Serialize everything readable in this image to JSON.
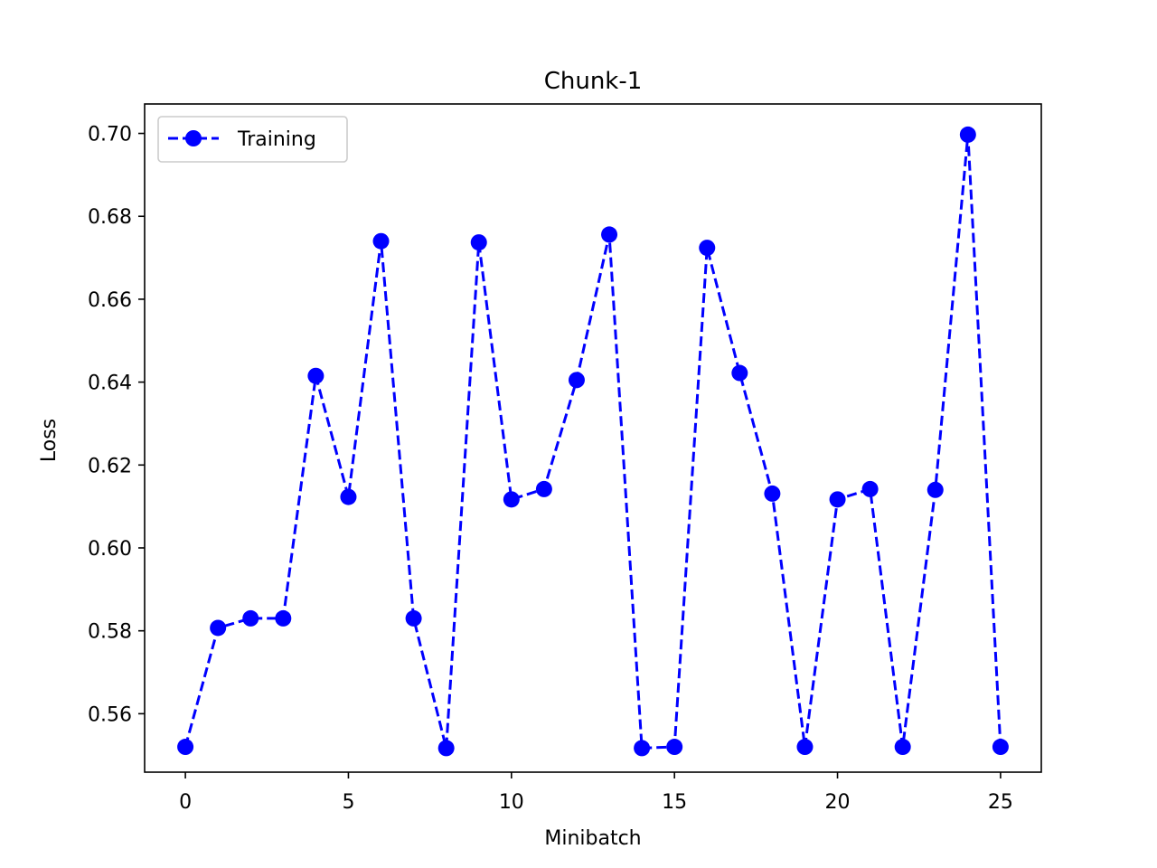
{
  "chart_data": {
    "type": "line",
    "title": "Chunk-1",
    "xlabel": "Minibatch",
    "ylabel": "Loss",
    "xlim": [
      -1.25,
      26.25
    ],
    "ylim": [
      0.5459,
      0.7071
    ],
    "xticks": [
      0,
      5,
      10,
      15,
      20,
      25
    ],
    "xtick_labels": [
      "0",
      "5",
      "10",
      "15",
      "20",
      "25"
    ],
    "yticks": [
      0.56,
      0.58,
      0.6,
      0.62,
      0.64,
      0.66,
      0.68,
      0.7
    ],
    "ytick_labels": [
      "0.56",
      "0.58",
      "0.60",
      "0.62",
      "0.64",
      "0.66",
      "0.68",
      "0.70"
    ],
    "grid": false,
    "legend": {
      "position": "top-left"
    },
    "series": [
      {
        "name": "Training",
        "color": "#0000ff",
        "line_style": "dashed",
        "marker": "circle",
        "x": [
          0,
          1,
          2,
          3,
          4,
          5,
          6,
          7,
          8,
          9,
          10,
          11,
          12,
          13,
          14,
          15,
          16,
          17,
          18,
          19,
          20,
          21,
          22,
          23,
          24,
          25
        ],
        "values": [
          0.552,
          0.5807,
          0.583,
          0.583,
          0.6415,
          0.6123,
          0.674,
          0.583,
          0.5517,
          0.6737,
          0.6117,
          0.6142,
          0.6405,
          0.6756,
          0.5517,
          0.552,
          0.6724,
          0.6422,
          0.6131,
          0.552,
          0.6117,
          0.6142,
          0.552,
          0.614,
          0.6997,
          0.552
        ]
      }
    ]
  }
}
